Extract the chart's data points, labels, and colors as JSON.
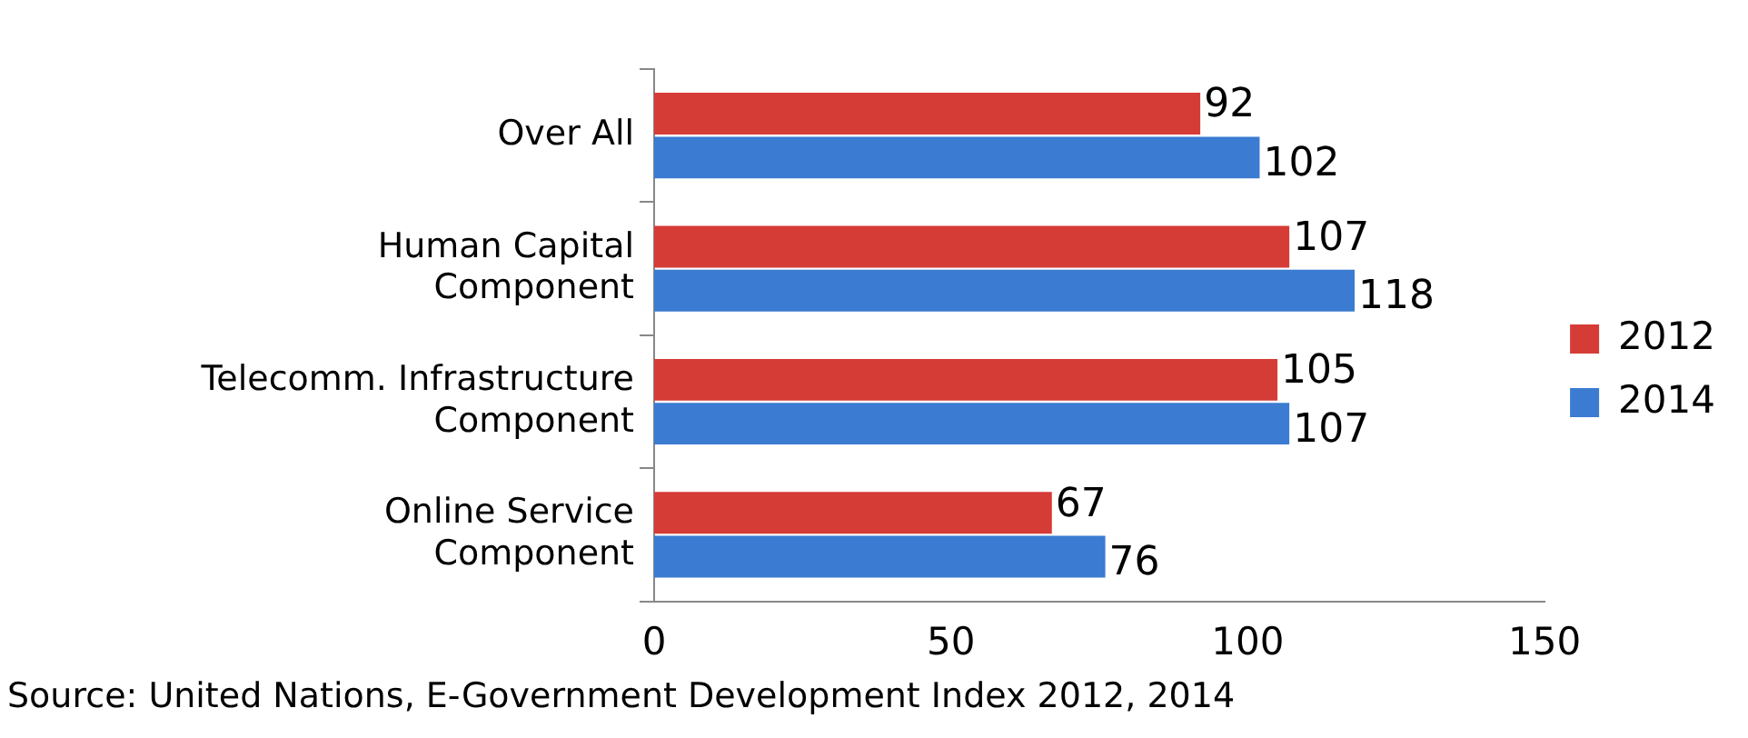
{
  "chart_data": {
    "type": "bar",
    "orientation": "horizontal",
    "categories": [
      "Over All",
      "Human Capital\nComponent",
      "Telecomm. Infrastructure\nComponent",
      "Online Service\nComponent"
    ],
    "series": [
      {
        "name": "2012",
        "color": "#d63c36",
        "values": [
          92,
          107,
          105,
          67
        ]
      },
      {
        "name": "2014",
        "color": "#3b7bd1",
        "values": [
          102,
          118,
          107,
          76
        ]
      }
    ],
    "xlim": [
      0,
      150
    ],
    "xticks": [
      0,
      50,
      100,
      150
    ],
    "grid": false,
    "legend": "right",
    "data_labels": true,
    "annotations": [
      "Source: United Nations, E-Government Development Index 2012, 2014"
    ]
  }
}
